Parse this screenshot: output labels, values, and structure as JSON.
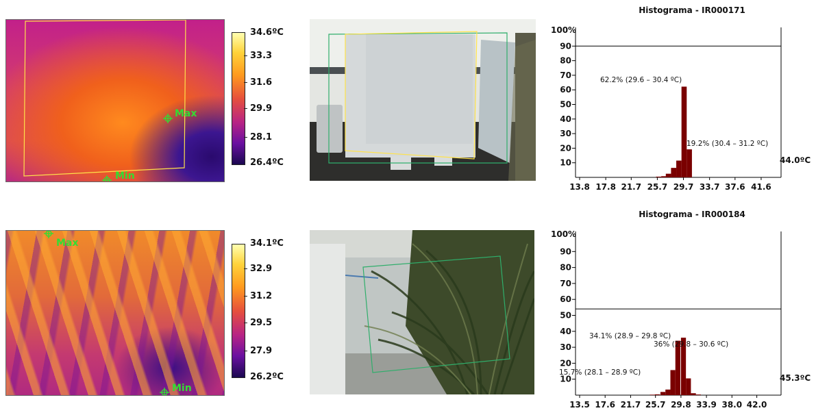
{
  "panels": [
    {
      "colorbar": {
        "max": "34.6ºC",
        "ticks": [
          "33.3",
          "31.6",
          "29.9",
          "28.1"
        ],
        "min": "26.4ºC"
      },
      "markers": {
        "max_label": "Max",
        "min_label": "Min"
      }
    },
    {
      "colorbar": {
        "max": "34.1ºC",
        "ticks": [
          "32.9",
          "31.2",
          "29.5",
          "27.9"
        ],
        "min": "26.2ºC"
      },
      "markers": {
        "max_label": "Max",
        "min_label": "Min"
      }
    }
  ],
  "colors": {
    "bar": "#7a0000",
    "marker": "#33dd33",
    "roi_yellow": "#ffe34a",
    "roi_green": "#2fae6b"
  },
  "chart_data": [
    {
      "type": "bar",
      "title": "Histograma - IR000171",
      "ylabel_top": "100%",
      "y_ticks": [
        "90",
        "80",
        "70",
        "60",
        "50",
        "40",
        "30",
        "20",
        "10"
      ],
      "ylim": [
        0,
        100
      ],
      "x_ticks": [
        "13.8",
        "17.8",
        "21.7",
        "25.7",
        "29.7",
        "33.7",
        "37.6",
        "41.6"
      ],
      "xlim": [
        13.8,
        43.6
      ],
      "reference_line": 90,
      "right_label": "44.0ºC",
      "bars": [
        {
          "x": 25.9,
          "value": 0.5
        },
        {
          "x": 26.7,
          "value": 0.8
        },
        {
          "x": 27.4,
          "value": 2.5
        },
        {
          "x": 28.2,
          "value": 6.5
        },
        {
          "x": 29.0,
          "value": 11.5
        },
        {
          "x": 29.8,
          "value": 62.2
        },
        {
          "x": 30.6,
          "value": 19.2
        }
      ],
      "annotations": [
        "62.2% (29.6 – 30.4 ºC)",
        "19.2% (30.4 – 31.2 ºC)"
      ]
    },
    {
      "type": "bar",
      "title": "Histograma - IR000184",
      "ylabel_top": "100%",
      "y_ticks": [
        "90",
        "80",
        "70",
        "60",
        "50",
        "40",
        "30",
        "20",
        "10"
      ],
      "ylim": [
        0,
        100
      ],
      "x_ticks": [
        "13.5",
        "17.6",
        "21.7",
        "25.7",
        "29.8",
        "33.9",
        "38.0",
        "42.0"
      ],
      "xlim": [
        13.5,
        44.8
      ],
      "reference_line": 54,
      "right_label": "45.3ºC",
      "bars": [
        {
          "x": 25.2,
          "value": 0.3
        },
        {
          "x": 26.0,
          "value": 0.5
        },
        {
          "x": 26.9,
          "value": 2.0
        },
        {
          "x": 27.7,
          "value": 3.5
        },
        {
          "x": 28.5,
          "value": 15.7
        },
        {
          "x": 29.3,
          "value": 34.1
        },
        {
          "x": 30.2,
          "value": 36
        },
        {
          "x": 31.0,
          "value": 10.5
        },
        {
          "x": 31.8,
          "value": 1.2
        },
        {
          "x": 32.6,
          "value": 0.4
        }
      ],
      "annotations": [
        "34.1% (28.9 – 29.8 ºC)",
        "36% (29.8 – 30.6 ºC)",
        "15.7% (28.1 – 28.9 ºC)"
      ]
    }
  ]
}
